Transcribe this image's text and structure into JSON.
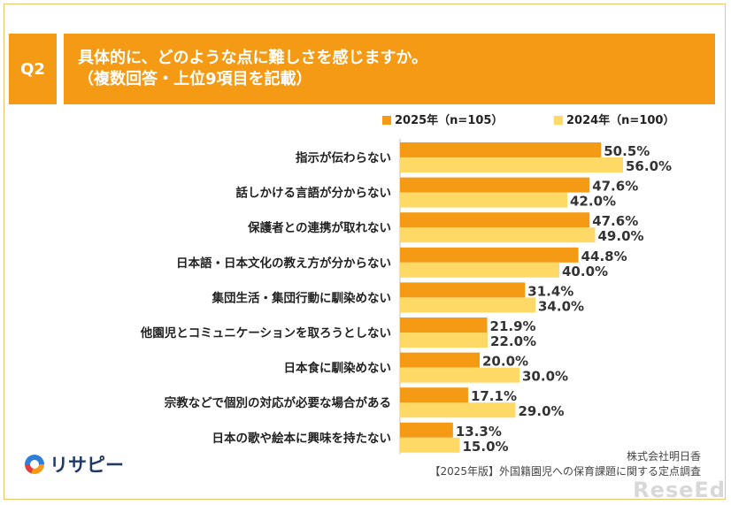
{
  "header": {
    "badge": "Q2",
    "title_line1": "具体的に、どのような点に難しさを感じますか。",
    "title_line2": "（複数回答・上位9項目を記載）"
  },
  "colors": {
    "accent": "#f59a14",
    "series_2025": "#f59a14",
    "series_2024": "#ffd966"
  },
  "chart_data": {
    "type": "bar",
    "orientation": "horizontal",
    "categories": [
      "指示が伝わらない",
      "話しかける言語が分からない",
      "保護者との連携が取れない",
      "日本語・日本文化の教え方が分からない",
      "集団生活・集団行動に馴染めない",
      "他園児とコミュニケーションを取ろうとしない",
      "日本食に馴染めない",
      "宗教などで個別の対応が必要な場合がある",
      "日本の歌や絵本に興味を持たない"
    ],
    "series": [
      {
        "name": "2025年（n=105）",
        "values": [
          50.5,
          47.6,
          47.6,
          44.8,
          31.4,
          21.9,
          20.0,
          17.1,
          13.3
        ]
      },
      {
        "name": "2024年（n=100）",
        "values": [
          56.0,
          42.0,
          49.0,
          40.0,
          34.0,
          22.0,
          30.0,
          29.0,
          15.0
        ]
      }
    ],
    "value_suffix": "%",
    "xlim": [
      0,
      100
    ],
    "legend": "top-right",
    "grid": false
  },
  "footer": {
    "logo_text": "リサピー",
    "source_line1": "株式会社明日香",
    "source_line2": "【2025年版】外国籍園児への保育課題に関する定点調査",
    "watermark": "ReseEd"
  }
}
